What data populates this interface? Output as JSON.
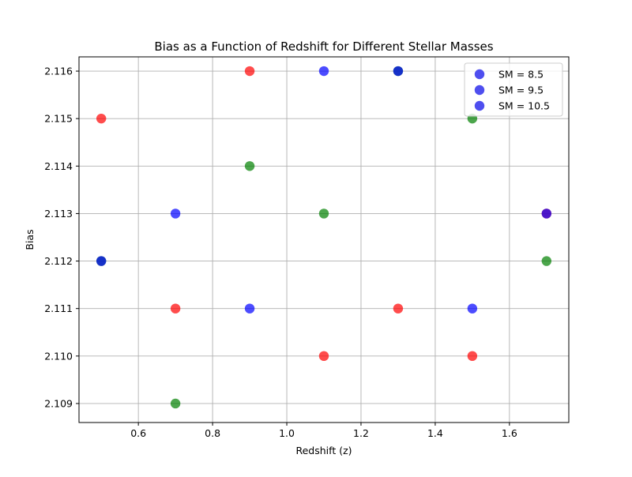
{
  "chart_data": {
    "type": "scatter",
    "title": "Bias as a Function of Redshift for Different Stellar Masses",
    "xlabel": "Redshift (z)",
    "ylabel": "Bias",
    "xlim": [
      0.44,
      1.76
    ],
    "ylim": [
      2.1086,
      2.1163
    ],
    "xticks": [
      0.6,
      0.8,
      1.0,
      1.2,
      1.4,
      1.6
    ],
    "xtick_labels": [
      "0.6",
      "0.8",
      "1.0",
      "1.2",
      "1.4",
      "1.6"
    ],
    "yticks": [
      2.109,
      2.11,
      2.111,
      2.112,
      2.113,
      2.114,
      2.115,
      2.116
    ],
    "ytick_labels": [
      "2.109",
      "2.110",
      "2.111",
      "2.112",
      "2.113",
      "2.114",
      "2.115",
      "2.116"
    ],
    "grid": true,
    "legend_position": "top-right",
    "legend_marker_color": "#4444ee",
    "series": [
      {
        "name": "SM = 8.5",
        "color": "#ff0000",
        "points": [
          {
            "x": 0.5,
            "y": 2.115
          },
          {
            "x": 0.7,
            "y": 2.111
          },
          {
            "x": 0.9,
            "y": 2.116
          },
          {
            "x": 1.1,
            "y": 2.11
          },
          {
            "x": 1.3,
            "y": 2.111
          },
          {
            "x": 1.5,
            "y": 2.11
          },
          {
            "x": 1.7,
            "y": 2.113
          }
        ]
      },
      {
        "name": "SM = 9.5",
        "color": "#008000",
        "points": [
          {
            "x": 0.5,
            "y": 2.112
          },
          {
            "x": 0.7,
            "y": 2.109
          },
          {
            "x": 0.9,
            "y": 2.114
          },
          {
            "x": 1.1,
            "y": 2.113
          },
          {
            "x": 1.3,
            "y": 2.116
          },
          {
            "x": 1.5,
            "y": 2.115
          },
          {
            "x": 1.7,
            "y": 2.112
          }
        ]
      },
      {
        "name": "SM = 10.5",
        "color": "#0000ff",
        "points": [
          {
            "x": 0.5,
            "y": 2.112
          },
          {
            "x": 0.7,
            "y": 2.113
          },
          {
            "x": 0.9,
            "y": 2.111
          },
          {
            "x": 1.1,
            "y": 2.116
          },
          {
            "x": 1.3,
            "y": 2.116
          },
          {
            "x": 1.5,
            "y": 2.111
          },
          {
            "x": 1.7,
            "y": 2.113
          }
        ]
      }
    ]
  }
}
